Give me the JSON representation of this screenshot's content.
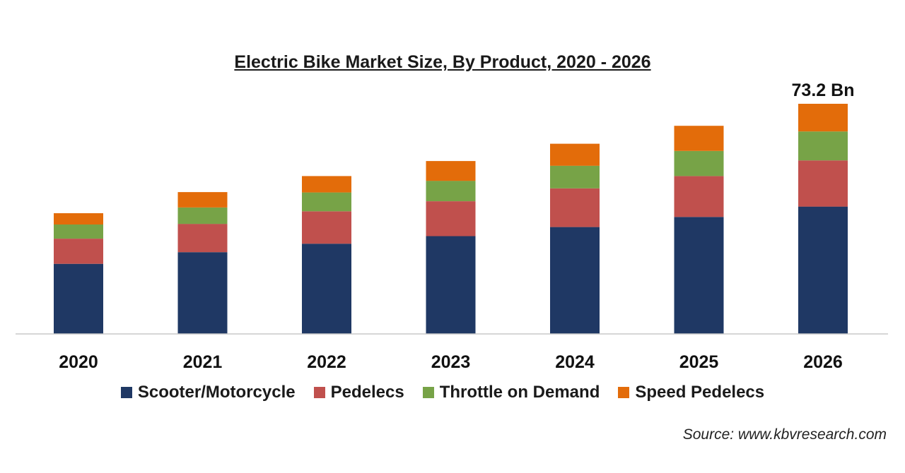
{
  "chart_data": {
    "type": "bar",
    "stacked": true,
    "title": "Electric Bike Market Size, By Product, 2020 - 2026",
    "categories": [
      "2020",
      "2021",
      "2022",
      "2023",
      "2024",
      "2025",
      "2026"
    ],
    "series": [
      {
        "name": "Scooter/Motorcycle",
        "color": "#1f3864",
        "values": [
          22.3,
          26.0,
          28.7,
          31.1,
          34.0,
          37.2,
          40.5
        ]
      },
      {
        "name": "Pedelecs",
        "color": "#c0504d",
        "values": [
          8.0,
          9.0,
          10.3,
          11.1,
          12.3,
          13.0,
          14.7
        ]
      },
      {
        "name": "Throttle on Demand",
        "color": "#77a347",
        "values": [
          4.5,
          5.2,
          6.0,
          6.5,
          7.2,
          8.0,
          9.2
        ]
      },
      {
        "name": "Speed Pedelecs",
        "color": "#e36c0a",
        "values": [
          3.6,
          4.9,
          5.2,
          6.3,
          7.0,
          8.0,
          8.8
        ]
      }
    ],
    "annotations": [
      {
        "category": "2026",
        "text": "73.2 Bn"
      }
    ],
    "ylim": [
      0,
      80
    ],
    "xlabel": "",
    "ylabel": "",
    "grid": false,
    "legend_position": "bottom"
  },
  "source": "Source: www.kbvresearch.com"
}
